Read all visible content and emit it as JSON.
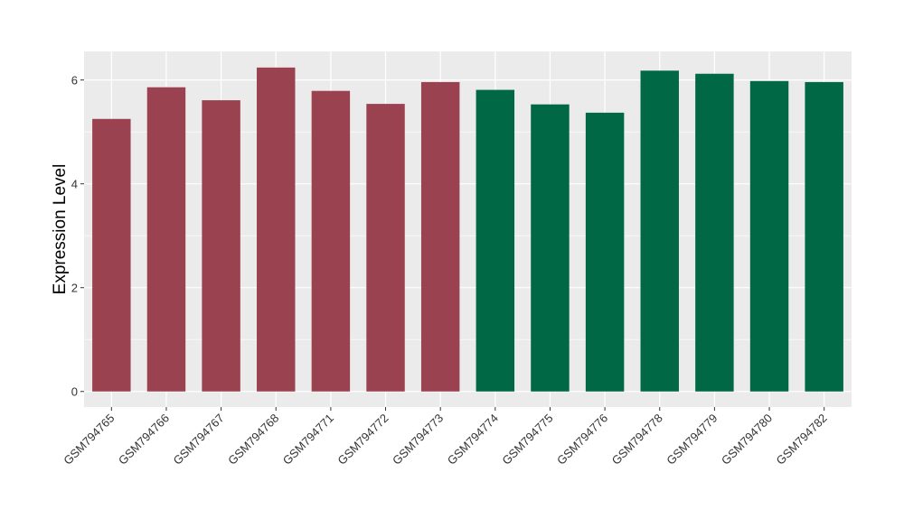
{
  "chart_data": {
    "type": "bar",
    "title": "",
    "xlabel": "",
    "ylabel": "Expression Level",
    "ylim": [
      -0.3,
      6.55
    ],
    "yticks": [
      0,
      2,
      4,
      6
    ],
    "grid": true,
    "legend": "none",
    "colors": {
      "group_a": "#9b4250",
      "group_b": "#006845",
      "panel": "#ebebeb",
      "gridline": "#ffffff",
      "axis_text": "#333333"
    },
    "categories": [
      "GSM794765",
      "GSM794766",
      "GSM794767",
      "GSM794768",
      "GSM794771",
      "GSM794772",
      "GSM794773",
      "GSM794774",
      "GSM794775",
      "GSM794776",
      "GSM794778",
      "GSM794779",
      "GSM794780",
      "GSM794782"
    ],
    "values": [
      5.25,
      5.86,
      5.61,
      6.24,
      5.79,
      5.54,
      5.96,
      5.81,
      5.53,
      5.37,
      6.18,
      6.12,
      5.98,
      5.96
    ],
    "groups": [
      "a",
      "a",
      "a",
      "a",
      "a",
      "a",
      "a",
      "b",
      "b",
      "b",
      "b",
      "b",
      "b",
      "b"
    ]
  }
}
